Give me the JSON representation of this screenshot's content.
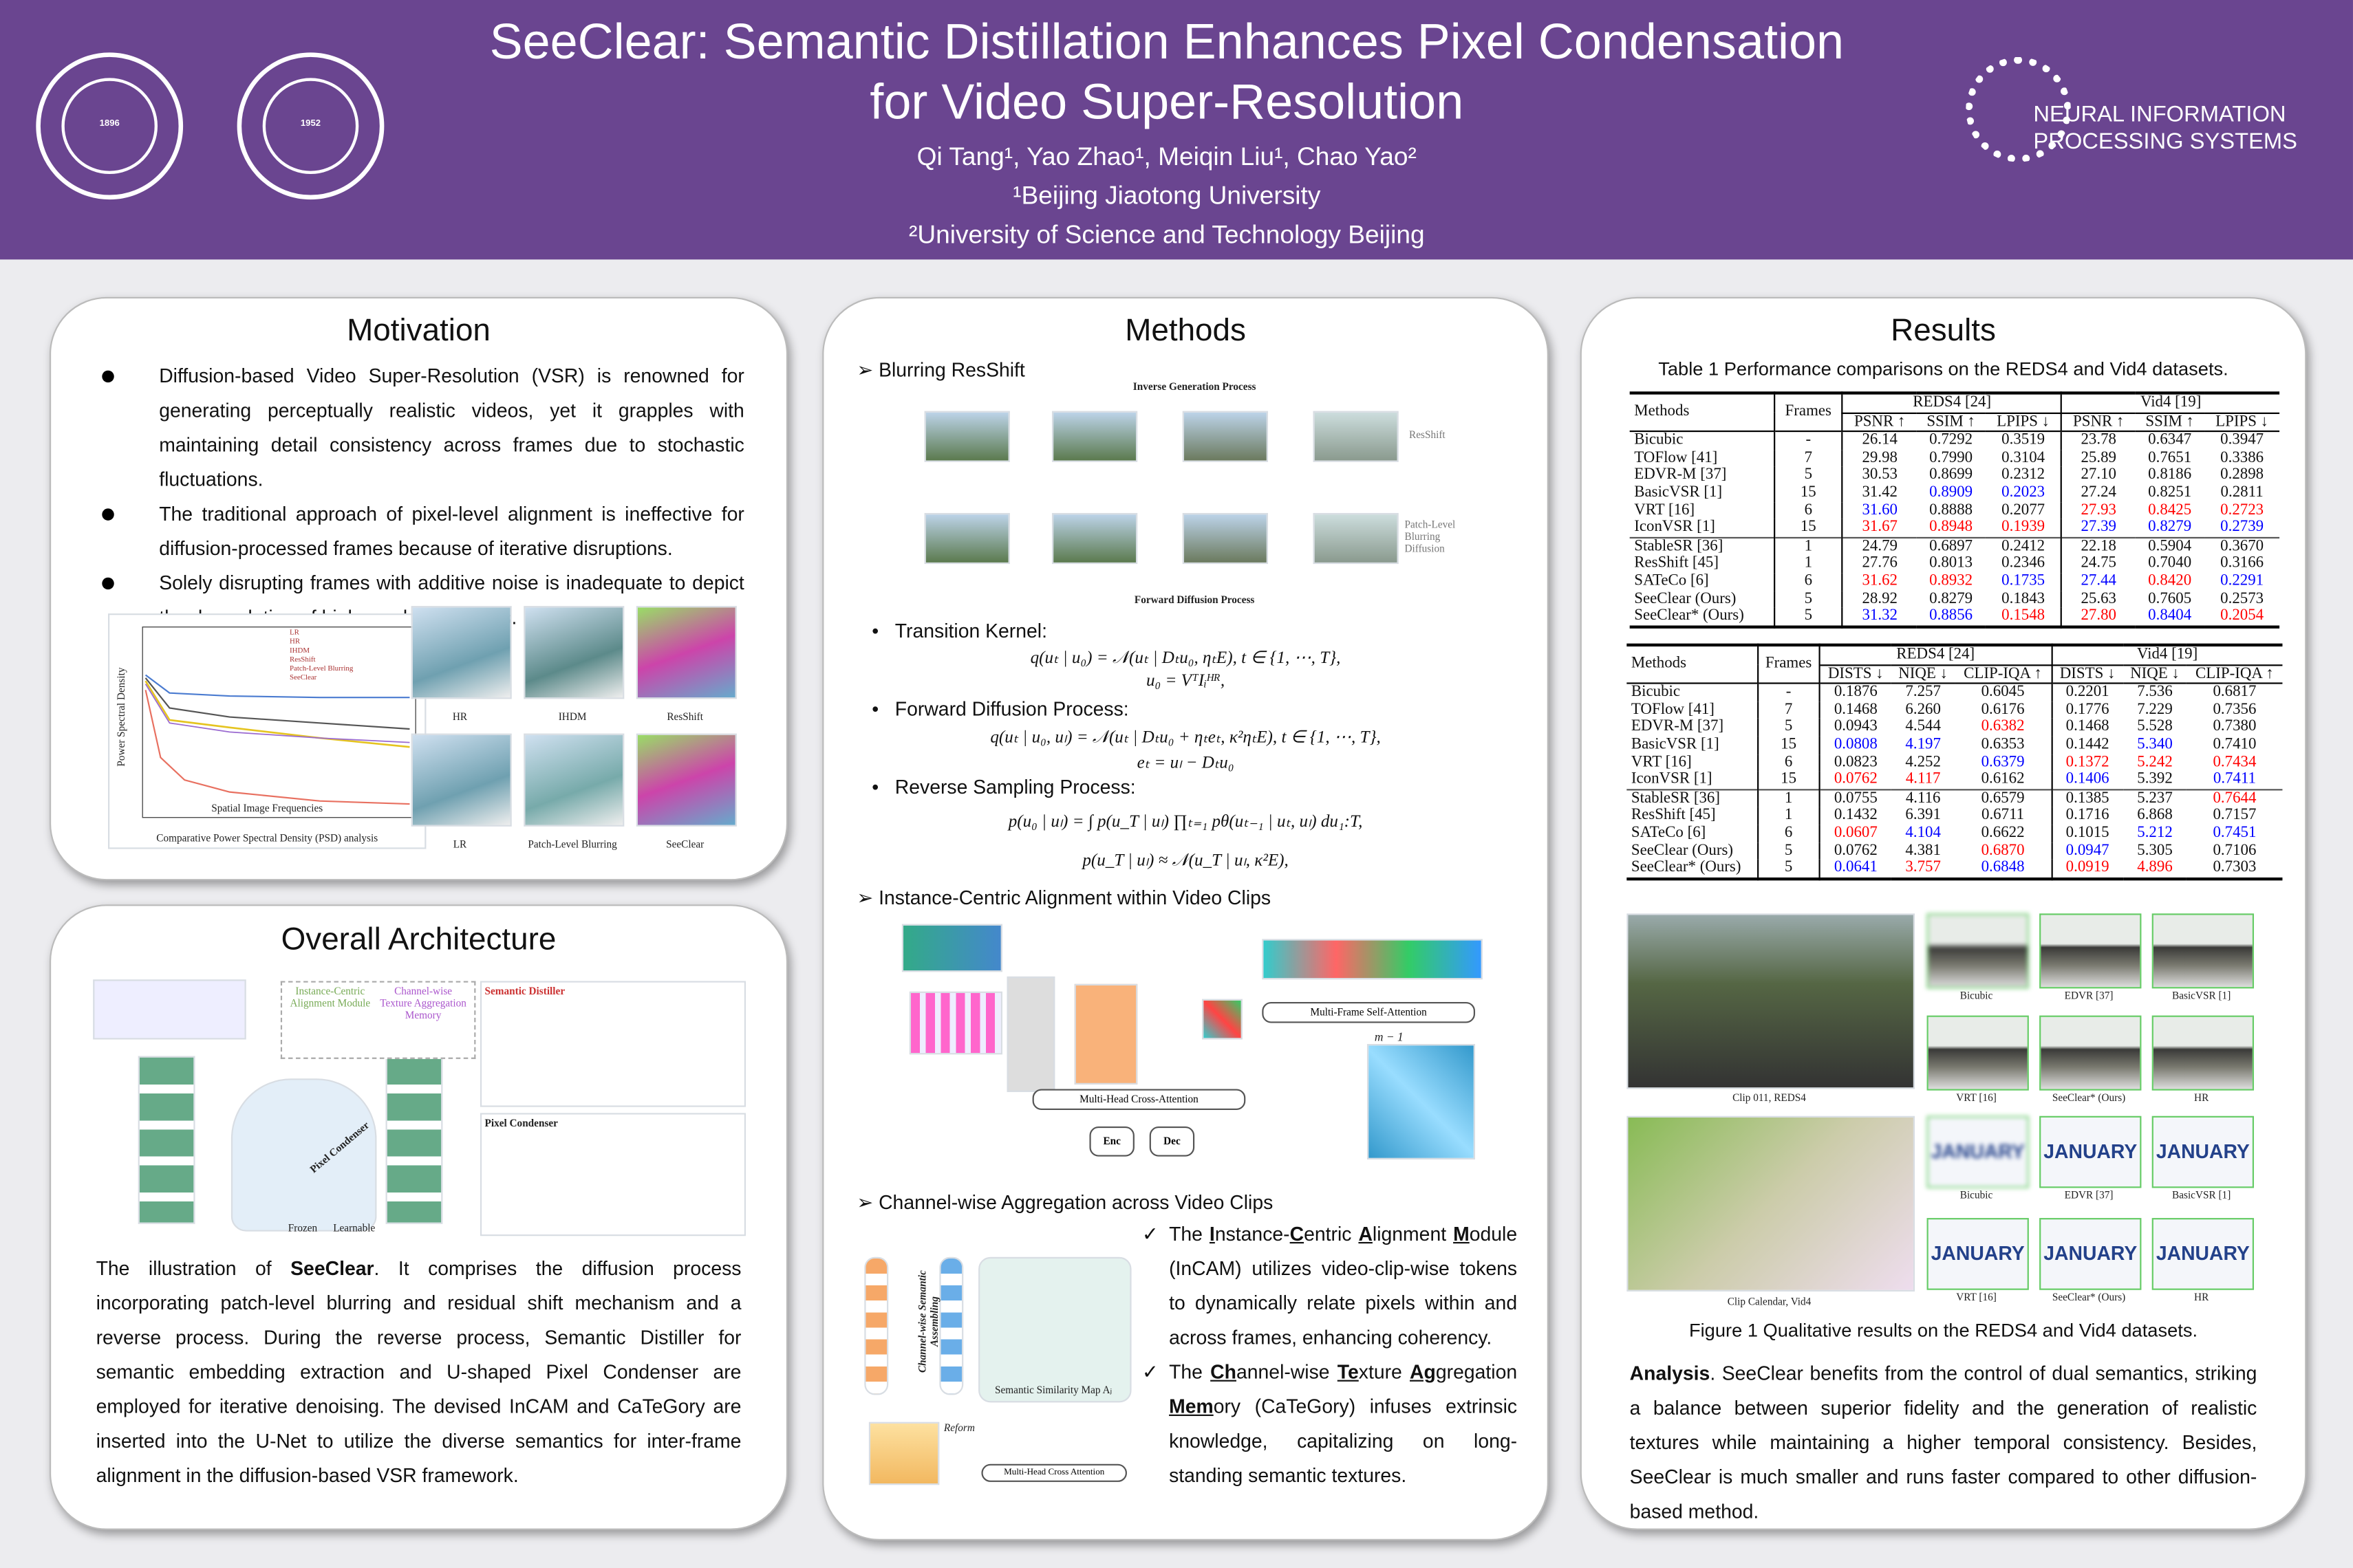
{
  "header": {
    "title_line1": "SeeClear: Semantic Distillation Enhances Pixel Condensation",
    "title_line2": "for Video Super-Resolution",
    "authors": "Qi Tang¹, Yao Zhao¹, Meiqin Liu¹, Chao Yao²",
    "affiliation1": "¹Beijing Jiaotong University",
    "affiliation2": "²University of Science and Technology Beijing",
    "logo_left1": "BEIJING JIAOTONG UNIVERSITY 1896",
    "logo_left2": "UNIVERSITY OF SCIENCE AND TECHNOLOGY 1952",
    "neurips_line1": "NEURAL INFORMATION",
    "neurips_line2": "PROCESSING SYSTEMS",
    "colors": {
      "banner": "#6a4590",
      "text": "#ffffff"
    }
  },
  "motivation": {
    "title": "Motivation",
    "bullets": [
      "Diffusion-based Video Super-Resolution (VSR) is renowned for generating perceptually realistic videos, yet it grapples with maintaining detail consistency across frames due to stochastic fluctuations.",
      "The traditional approach of pixel-level alignment is ineffective for diffusion-processed frames because of iterative disruptions.",
      "Solely disrupting frames with additive noise is inadequate to depict the degradation of high-resolution videos."
    ],
    "psd_caption": "Comparative Power Spectral Density (PSD) analysis",
    "psd_xlabel": "Spatial Image Frequencies",
    "psd_ylabel": "Power Spectral Density",
    "psd_legend": [
      "LR",
      "HR",
      "IHDM",
      "ResShift",
      "Patch-Level Blurring",
      "SeeClear"
    ],
    "surface_labels": [
      "HR",
      "IHDM",
      "ResShift",
      "LR",
      "Patch-Level Blurring",
      "SeeClear"
    ]
  },
  "architecture": {
    "title": "Overall Architecture",
    "fig_labels": [
      "Instance-Centric Alignment Module",
      "Channel-wise Texture Aggregation Memory",
      "Semantic Distiller",
      "Pixel Condenser",
      "Pixel Condenser",
      "Frozen",
      "Learnable"
    ],
    "desc_lead": "The illustration of ",
    "desc_bold": "SeeClear",
    "desc_rest": ". It comprises the diffusion process incorporating patch-level blurring and residual shift mechanism and a reverse process. During the reverse process, Semantic Distiller for semantic embedding extraction and U-shaped Pixel Condenser are employed for iterative denoising. The devised InCAM and CaTeGory are inserted into the U-Net to utilize the diverse semantics for inter-frame alignment in the diffusion-based VSR framework."
  },
  "methods": {
    "title": "Methods",
    "sec1": "Blurring ResShift",
    "fig1_labels": {
      "top": "Inverse Generation Process",
      "bottom": "Forward Diffusion Process",
      "r1": "ResShift",
      "r2": "Patch-Level Blurring Diffusion"
    },
    "kernel_label": "Transition Kernel:",
    "kernel_eq1": "q(uₜ | u₀) = 𝒩(uₜ | Dₜu₀, ηₜE),    t ∈ {1, ⋯, T},",
    "kernel_eq2": "u₀ = VᵀIᵢᴴᴿ,",
    "forward_label": "Forward Diffusion Process:",
    "forward_eq1": "q(uₜ | u₀, uₗ) = 𝒩(uₜ | Dₜu₀ + ηₜeₜ, κ²ηₜE),    t ∈ {1, ⋯, T},",
    "forward_eq2": "eₜ = uₗ − Dₜu₀",
    "reverse_label": "Reverse Sampling Process:",
    "reverse_eq1": "p(u₀ | uₗ) = ∫ p(u_T | uₗ) ∏ₜ₌₁ pθ(uₜ₋₁ | uₜ, uₗ) du₁:T,",
    "reverse_eq2": "p(u_T | uₗ) ≈ 𝒩(u_T | uₗ, κ²E),",
    "sec2": "Instance-Centric Alignment within Video Clips",
    "fig2_labels": {
      "mfsa": "Multi-Frame Self-Attention",
      "mhca": "Multi-Head Cross-Attention",
      "enc": "Enc",
      "dec": "Dec",
      "m": "m − 1"
    },
    "sec3": "Channel-wise Aggregation across Video Clips",
    "fig3_labels": {
      "ssm": "Semantic Similarity Map Aⱼ",
      "reform": "Reform",
      "mhca": "Multi-Head Cross Attention",
      "csa": "Channel-wise Semantic Assembling"
    },
    "checks": [
      {
        "pre": "The ",
        "b1": "I",
        "t1": "nstance-",
        "b2": "C",
        "t2": "entric ",
        "b3": "A",
        "t3": "lignment ",
        "b4": "M",
        "t4": "odule",
        "rest": " (InCAM) utilizes video-clip-wise tokens to dynamically relate pixels within and across frames, enhancing coherency."
      },
      {
        "pre": "The ",
        "b1": "Ch",
        "t1": "annel-wise ",
        "b2": "Te",
        "t2": "xture ",
        "b3": "Ag",
        "t3": "gregation ",
        "b4": "Mem",
        "t4": "ory",
        "rest": " (CaTeGory) infuses extrinsic knowledge, capitalizing on long-standing semantic textures."
      }
    ]
  },
  "results": {
    "title": "Results",
    "table_caption": "Table 1 Performance comparisons on the REDS4 and Vid4 datasets.",
    "colors": {
      "best": "#ff0000",
      "second": "#0000ff",
      "normal": "#111111",
      "cite_box": "#33cc33"
    },
    "table1": {
      "col_methods": "Methods",
      "col_frames": "Frames",
      "groups": [
        "REDS4 [24]",
        "Vid4 [19]"
      ],
      "metrics": [
        "PSNR ↑",
        "SSIM ↑",
        "LPIPS ↓",
        "PSNR ↑",
        "SSIM ↑",
        "LPIPS ↓"
      ],
      "rows": [
        {
          "m": "Bicubic",
          "f": "-",
          "v": [
            "26.14",
            "0.7292",
            "0.3519",
            "23.78",
            "0.6347",
            "0.3947"
          ],
          "c": "kkkkkk"
        },
        {
          "m": "TOFlow [41]",
          "f": "7",
          "v": [
            "29.98",
            "0.7990",
            "0.3104",
            "25.89",
            "0.7651",
            "0.3386"
          ],
          "c": "kkkkkk"
        },
        {
          "m": "EDVR-M [37]",
          "f": "5",
          "v": [
            "30.53",
            "0.8699",
            "0.2312",
            "27.10",
            "0.8186",
            "0.2898"
          ],
          "c": "kkkkkk"
        },
        {
          "m": "BasicVSR [1]",
          "f": "15",
          "v": [
            "31.42",
            "0.8909",
            "0.2023",
            "27.24",
            "0.8251",
            "0.2811"
          ],
          "c": "kbbkkk"
        },
        {
          "m": "VRT [16]",
          "f": "6",
          "v": [
            "31.60",
            "0.8888",
            "0.2077",
            "27.93",
            "0.8425",
            "0.2723"
          ],
          "c": "bkkrrr"
        },
        {
          "m": "IconVSR [1]",
          "f": "15",
          "v": [
            "31.67",
            "0.8948",
            "0.1939",
            "27.39",
            "0.8279",
            "0.2739"
          ],
          "c": "rrrbbb",
          "sep": true
        },
        {
          "m": "StableSR [36]",
          "f": "1",
          "v": [
            "24.79",
            "0.6897",
            "0.2412",
            "22.18",
            "0.5904",
            "0.3670"
          ],
          "c": "kkkkkk"
        },
        {
          "m": "ResShift [45]",
          "f": "1",
          "v": [
            "27.76",
            "0.8013",
            "0.2346",
            "24.75",
            "0.7040",
            "0.3166"
          ],
          "c": "kkkkkk"
        },
        {
          "m": "SATeCo [6]",
          "f": "6",
          "v": [
            "31.62",
            "0.8932",
            "0.1735",
            "27.44",
            "0.8420",
            "0.2291"
          ],
          "c": "rrbbrb"
        },
        {
          "m": "SeeClear (Ours)",
          "f": "5",
          "v": [
            "28.92",
            "0.8279",
            "0.1843",
            "25.63",
            "0.7605",
            "0.2573"
          ],
          "c": "kkkkkk"
        },
        {
          "m": "SeeClear* (Ours)",
          "f": "5",
          "v": [
            "31.32",
            "0.8856",
            "0.1548",
            "27.80",
            "0.8404",
            "0.2054"
          ],
          "c": "bbrrbr"
        }
      ]
    },
    "table2": {
      "col_methods": "Methods",
      "col_frames": "Frames",
      "groups": [
        "REDS4 [24]",
        "Vid4 [19]"
      ],
      "metrics": [
        "DISTS ↓",
        "NIQE ↓",
        "CLIP-IQA ↑",
        "DISTS ↓",
        "NIQE ↓",
        "CLIP-IQA ↑"
      ],
      "rows": [
        {
          "m": "Bicubic",
          "f": "-",
          "v": [
            "0.1876",
            "7.257",
            "0.6045",
            "0.2201",
            "7.536",
            "0.6817"
          ],
          "c": "kkkkkk"
        },
        {
          "m": "TOFlow [41]",
          "f": "7",
          "v": [
            "0.1468",
            "6.260",
            "0.6176",
            "0.1776",
            "7.229",
            "0.7356"
          ],
          "c": "kkkkkk"
        },
        {
          "m": "EDVR-M [37]",
          "f": "5",
          "v": [
            "0.0943",
            "4.544",
            "0.6382",
            "0.1468",
            "5.528",
            "0.7380"
          ],
          "c": "kkrkkk"
        },
        {
          "m": "BasicVSR [1]",
          "f": "15",
          "v": [
            "0.0808",
            "4.197",
            "0.6353",
            "0.1442",
            "5.340",
            "0.7410"
          ],
          "c": "bbkkbk"
        },
        {
          "m": "VRT [16]",
          "f": "6",
          "v": [
            "0.0823",
            "4.252",
            "0.6379",
            "0.1372",
            "5.242",
            "0.7434"
          ],
          "c": "kkbrrr"
        },
        {
          "m": "IconVSR [1]",
          "f": "15",
          "v": [
            "0.0762",
            "4.117",
            "0.6162",
            "0.1406",
            "5.392",
            "0.7411"
          ],
          "c": "rrkbkb",
          "sep": true
        },
        {
          "m": "StableSR [36]",
          "f": "1",
          "v": [
            "0.0755",
            "4.116",
            "0.6579",
            "0.1385",
            "5.237",
            "0.7644"
          ],
          "c": "kkkkkr"
        },
        {
          "m": "ResShift [45]",
          "f": "1",
          "v": [
            "0.1432",
            "6.391",
            "0.6711",
            "0.1716",
            "6.868",
            "0.7157"
          ],
          "c": "kkkkkk"
        },
        {
          "m": "SATeCo [6]",
          "f": "6",
          "v": [
            "0.0607",
            "4.104",
            "0.6622",
            "0.1015",
            "5.212",
            "0.7451"
          ],
          "c": "rbkkbb"
        },
        {
          "m": "SeeClear (Ours)",
          "f": "5",
          "v": [
            "0.0762",
            "4.381",
            "0.6870",
            "0.0947",
            "5.305",
            "0.7106"
          ],
          "c": "kkrbkk"
        },
        {
          "m": "SeeClear* (Ours)",
          "f": "5",
          "v": [
            "0.0641",
            "3.757",
            "0.6848",
            "0.0919",
            "4.896",
            "0.7303"
          ],
          "c": "brbrrk"
        }
      ]
    },
    "qual": {
      "clip1": "Clip 011, REDS4",
      "clip2": "Clip Calendar, Vid4",
      "labels": [
        "Bicubic",
        "EDVR [37]",
        "BasicVSR [1]",
        "VRT [16]",
        "SeeClear* (Ours)",
        "HR"
      ],
      "calendar_text": "JANUARY"
    },
    "figure_caption": "Figure 1 Qualitative results on the REDS4 and Vid4 datasets.",
    "analysis_bold": "Analysis",
    "analysis_text": ". SeeClear benefits from the control of dual semantics, striking a balance between superior fidelity and the generation of realistic textures while maintaining a higher temporal consistency. Besides, SeeClear is much smaller and runs faster compared to other diffusion-based method."
  }
}
